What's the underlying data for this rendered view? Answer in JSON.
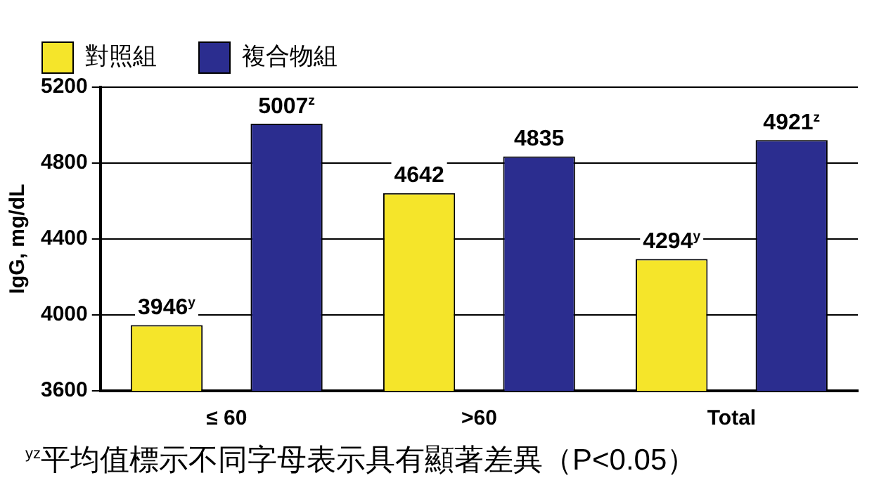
{
  "chart_data": {
    "type": "bar",
    "ylabel": "IgG, mg/dL",
    "categories": [
      "≤ 60",
      ">60",
      "Total"
    ],
    "series": [
      {
        "name": "對照組",
        "color": "#f5e52a",
        "values": [
          3946,
          4642,
          4294
        ],
        "value_labels": [
          "3946$^{y}$",
          "4642",
          "4294$^{y}$"
        ]
      },
      {
        "name": "複合物組",
        "color": "#2b2d8f",
        "values": [
          5007,
          4835,
          4921
        ],
        "value_labels": [
          "5007$^{z}$",
          "4835",
          "4921$^{z}$"
        ]
      }
    ],
    "ylim": [
      3600,
      5200
    ],
    "yticks": [
      3600,
      4000,
      4400,
      4800,
      5200
    ],
    "grid": "y",
    "legend": "top",
    "annotations": [
      "$^{yz}$平均值標示不同字母表示具有顯著差異（P<0.05）"
    ]
  }
}
